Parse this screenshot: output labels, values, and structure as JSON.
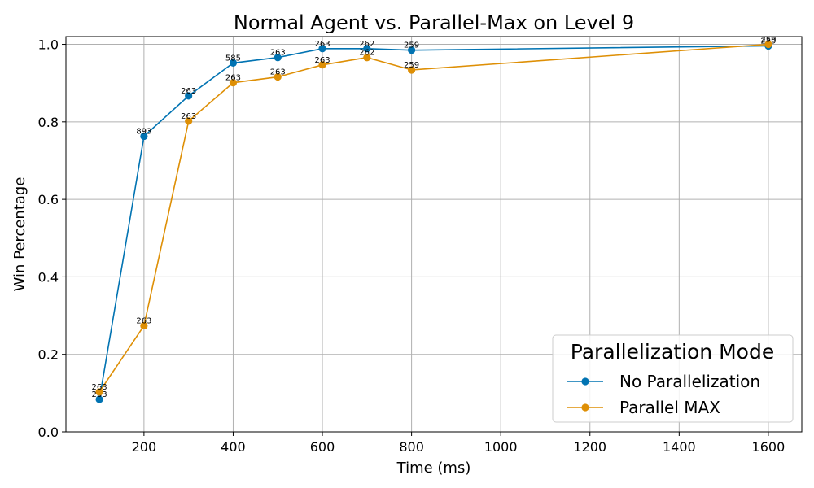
{
  "chart_data": {
    "type": "line",
    "title": "Normal Agent vs. Parallel-Max on Level 9",
    "xlabel": "Time (ms)",
    "ylabel": "Win Percentage",
    "xlim": [
      25,
      1675
    ],
    "ylim": [
      0.0,
      1.02
    ],
    "x_ticks": [
      200,
      400,
      600,
      800,
      1000,
      1200,
      1400,
      1600
    ],
    "y_ticks": [
      0.0,
      0.2,
      0.4,
      0.6,
      0.8,
      1.0
    ],
    "x_tick_labels": [
      "200",
      "400",
      "600",
      "800",
      "1000",
      "1200",
      "1400",
      "1600"
    ],
    "y_tick_labels": [
      "0.0",
      "0.2",
      "0.4",
      "0.6",
      "0.8",
      "1.0"
    ],
    "grid": true,
    "legend": {
      "title": "Parallelization Mode",
      "placement": "bottom-right"
    },
    "series": [
      {
        "name": "No Parallelization",
        "color": "#0173b2",
        "x": [
          100,
          200,
          300,
          400,
          500,
          600,
          700,
          800,
          1600
        ],
        "y": [
          0.084,
          0.763,
          0.867,
          0.952,
          0.966,
          0.989,
          0.989,
          0.985,
          0.996
        ],
        "labels": [
          "263",
          "893",
          "263",
          "585",
          "263",
          "263",
          "262",
          "259",
          "259"
        ]
      },
      {
        "name": "Parallel MAX",
        "color": "#de8f05",
        "x": [
          100,
          200,
          300,
          400,
          500,
          600,
          700,
          800,
          1600
        ],
        "y": [
          0.103,
          0.274,
          0.802,
          0.901,
          0.916,
          0.947,
          0.966,
          0.934,
          1.0
        ],
        "labels": [
          "263",
          "263",
          "263",
          "263",
          "263",
          "263",
          "262",
          "259",
          "259"
        ]
      }
    ]
  }
}
